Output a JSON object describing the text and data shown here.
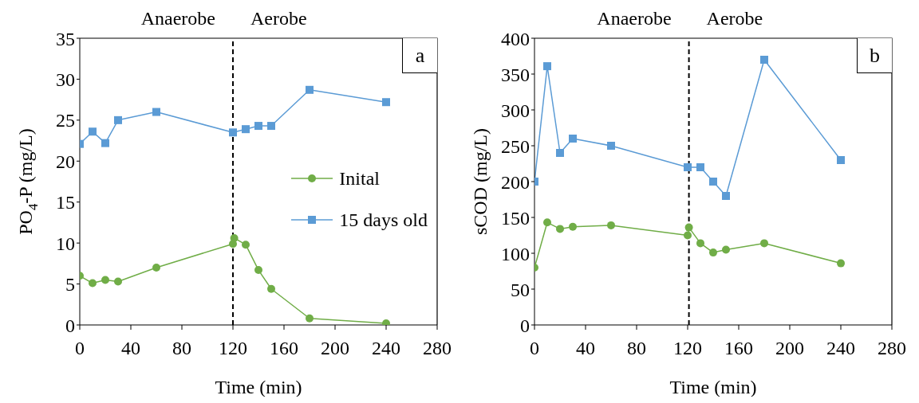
{
  "chart_data": [
    {
      "type": "line",
      "xlabel": "Time (min)",
      "ylabel": "PO$_{4}$-P (mg/L)",
      "xlim": [
        0,
        280
      ],
      "xticks": [
        0,
        40,
        80,
        120,
        160,
        200,
        240,
        280
      ],
      "ylim": [
        0,
        35
      ],
      "yticks": [
        0,
        5,
        10,
        15,
        20,
        25,
        30,
        35
      ],
      "grid": false,
      "legend": "right",
      "line_style": "solid",
      "annotations": [
        "Anaerobe",
        "Aerobe",
        "a"
      ],
      "ref_lines": [
        {
          "axis": "x",
          "value": 120,
          "line_style": "dashed",
          "color": "#000000"
        }
      ],
      "series": [
        {
          "name": "Inital",
          "color": "#70ad47",
          "marker": "circle",
          "x": [
            0,
            10,
            20,
            30,
            60,
            120,
            121,
            130,
            140,
            150,
            180,
            240
          ],
          "values": [
            6.0,
            5.1,
            5.5,
            5.3,
            7.0,
            9.9,
            10.6,
            9.8,
            6.7,
            4.4,
            0.8,
            0.2
          ]
        },
        {
          "name": "15 days old",
          "color": "#5b9bd5",
          "marker": "square",
          "x": [
            0,
            10,
            20,
            30,
            60,
            120,
            130,
            140,
            150,
            180,
            240
          ],
          "values": [
            22.1,
            23.6,
            22.2,
            25.0,
            26.0,
            23.5,
            23.9,
            24.3,
            24.3,
            28.7,
            27.2
          ]
        }
      ]
    },
    {
      "type": "line",
      "xlabel": "Time (min)",
      "ylabel": "sCOD (mg/L)",
      "xlim": [
        0,
        280
      ],
      "xticks": [
        0,
        40,
        80,
        120,
        160,
        200,
        240,
        280
      ],
      "ylim": [
        0,
        400
      ],
      "yticks": [
        0,
        50,
        100,
        150,
        200,
        250,
        300,
        350,
        400
      ],
      "grid": false,
      "legend": false,
      "line_style": "solid",
      "annotations": [
        "Anaerobe",
        "Aerobe",
        "b"
      ],
      "ref_lines": [
        {
          "axis": "x",
          "value": 121,
          "line_style": "dashed",
          "color": "#000000"
        }
      ],
      "series": [
        {
          "color": "#70ad47",
          "marker": "circle",
          "x": [
            0,
            10,
            20,
            30,
            60,
            120,
            121,
            130,
            140,
            150,
            180,
            240
          ],
          "values": [
            80,
            143,
            134,
            137,
            139,
            125,
            136,
            114,
            101,
            105,
            114,
            86
          ]
        },
        {
          "color": "#5b9bd5",
          "marker": "square",
          "x": [
            0,
            10,
            20,
            30,
            60,
            120,
            130,
            140,
            150,
            180,
            240
          ],
          "values": [
            200,
            361,
            240,
            260,
            250,
            220,
            220,
            200,
            180,
            370,
            230
          ]
        }
      ]
    }
  ]
}
